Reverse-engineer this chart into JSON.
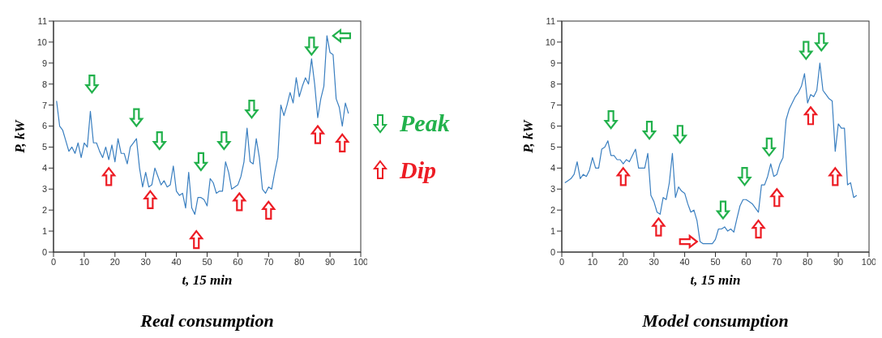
{
  "chart_data": [
    {
      "type": "line",
      "title": "Real consumption",
      "xlabel": "t, 15 min",
      "ylabel": "P, kW",
      "xlim": [
        0,
        100
      ],
      "xticks": [
        0,
        10,
        20,
        30,
        40,
        50,
        60,
        70,
        80,
        90,
        100
      ],
      "ylim": [
        0,
        11
      ],
      "yticks": [
        0,
        1,
        2,
        3,
        4,
        5,
        6,
        7,
        8,
        9,
        10,
        11
      ],
      "marker": "none",
      "line_style": "solid",
      "x": [
        1,
        2,
        3,
        4,
        5,
        6,
        7,
        8,
        9,
        10,
        11,
        12,
        13,
        14,
        15,
        16,
        17,
        18,
        19,
        20,
        21,
        22,
        23,
        24,
        25,
        26,
        27,
        28,
        29,
        30,
        31,
        32,
        33,
        34,
        35,
        36,
        37,
        38,
        39,
        40,
        41,
        42,
        43,
        44,
        45,
        46,
        47,
        48,
        49,
        50,
        51,
        52,
        53,
        54,
        55,
        56,
        57,
        58,
        59,
        60,
        61,
        62,
        63,
        64,
        65,
        66,
        67,
        68,
        69,
        70,
        71,
        72,
        73,
        74,
        75,
        76,
        77,
        78,
        79,
        80,
        81,
        82,
        83,
        84,
        85,
        86,
        87,
        88,
        89,
        90,
        91,
        92,
        93,
        94,
        95,
        96
      ],
      "series": [
        {
          "color": "#3a7fc0",
          "values": [
            7.2,
            6.0,
            5.8,
            5.3,
            4.8,
            5.0,
            4.7,
            5.2,
            4.5,
            5.2,
            5.0,
            6.7,
            5.2,
            5.2,
            4.8,
            4.5,
            5.0,
            4.4,
            5.1,
            4.3,
            5.4,
            4.7,
            4.7,
            4.2,
            5.0,
            5.2,
            5.4,
            4.0,
            3.1,
            3.8,
            3.1,
            3.2,
            4.0,
            3.6,
            3.2,
            3.4,
            3.1,
            3.2,
            4.1,
            2.9,
            2.7,
            2.8,
            2.1,
            3.8,
            2.1,
            1.8,
            2.6,
            2.6,
            2.5,
            2.2,
            3.5,
            3.3,
            2.8,
            2.9,
            2.9,
            4.3,
            3.8,
            3.0,
            3.1,
            3.2,
            3.6,
            4.3,
            5.9,
            4.3,
            4.2,
            5.4,
            4.5,
            3.0,
            2.8,
            3.1,
            3.0,
            3.8,
            4.5,
            7.0,
            6.5,
            7.0,
            7.6,
            7.1,
            8.3,
            7.4,
            7.9,
            8.3,
            8.0,
            9.2,
            8.0,
            6.4,
            7.3,
            7.9,
            10.3,
            9.5,
            9.4,
            7.3,
            6.9,
            6.0,
            7.1,
            6.6
          ]
        }
      ]
    },
    {
      "type": "other",
      "annotations": [
        "Peak",
        "Dip"
      ]
    },
    {
      "type": "line",
      "title": "Model consumption",
      "xlabel": "t, 15 min",
      "ylabel": "P, kW",
      "xlim": [
        0,
        100
      ],
      "xticks": [
        0,
        10,
        20,
        30,
        40,
        50,
        60,
        70,
        80,
        90,
        100
      ],
      "ylim": [
        0,
        11
      ],
      "yticks": [
        0,
        1,
        2,
        3,
        4,
        5,
        6,
        7,
        8,
        9,
        10,
        11
      ],
      "marker": "none",
      "line_style": "solid",
      "x": [
        1,
        2,
        3,
        4,
        5,
        6,
        7,
        8,
        9,
        10,
        11,
        12,
        13,
        14,
        15,
        16,
        17,
        18,
        19,
        20,
        21,
        22,
        23,
        24,
        25,
        26,
        27,
        28,
        29,
        30,
        31,
        32,
        33,
        34,
        35,
        36,
        37,
        38,
        39,
        40,
        41,
        42,
        43,
        44,
        45,
        46,
        47,
        48,
        49,
        50,
        51,
        52,
        53,
        54,
        55,
        56,
        57,
        58,
        59,
        60,
        61,
        62,
        63,
        64,
        65,
        66,
        67,
        68,
        69,
        70,
        71,
        72,
        73,
        74,
        75,
        76,
        77,
        78,
        79,
        80,
        81,
        82,
        83,
        84,
        85,
        86,
        87,
        88,
        89,
        90,
        91,
        92,
        93,
        94,
        95,
        96
      ],
      "series": [
        {
          "color": "#3a7fc0",
          "values": [
            3.3,
            3.4,
            3.5,
            3.7,
            4.3,
            3.5,
            3.7,
            3.6,
            3.9,
            4.5,
            4.0,
            4.0,
            4.9,
            5.0,
            5.3,
            4.6,
            4.6,
            4.4,
            4.4,
            4.2,
            4.4,
            4.3,
            4.6,
            4.9,
            4.0,
            4.0,
            4.0,
            4.7,
            2.7,
            2.4,
            1.9,
            1.8,
            2.6,
            2.5,
            3.3,
            4.7,
            2.6,
            3.1,
            2.9,
            2.8,
            2.3,
            1.9,
            2.0,
            1.5,
            0.5,
            0.4,
            0.4,
            0.4,
            0.4,
            0.6,
            1.1,
            1.1,
            1.2,
            1.0,
            1.1,
            0.95,
            1.6,
            2.2,
            2.5,
            2.5,
            2.4,
            2.3,
            2.1,
            1.9,
            3.2,
            3.2,
            3.6,
            4.2,
            3.6,
            3.7,
            4.2,
            4.5,
            6.3,
            6.8,
            7.1,
            7.4,
            7.6,
            7.9,
            8.5,
            7.1,
            7.5,
            7.4,
            7.7,
            9.0,
            7.7,
            7.5,
            7.3,
            7.2,
            4.8,
            6.1,
            5.9,
            5.9,
            3.2,
            3.3,
            2.6,
            2.7
          ]
        }
      ]
    }
  ]
}
